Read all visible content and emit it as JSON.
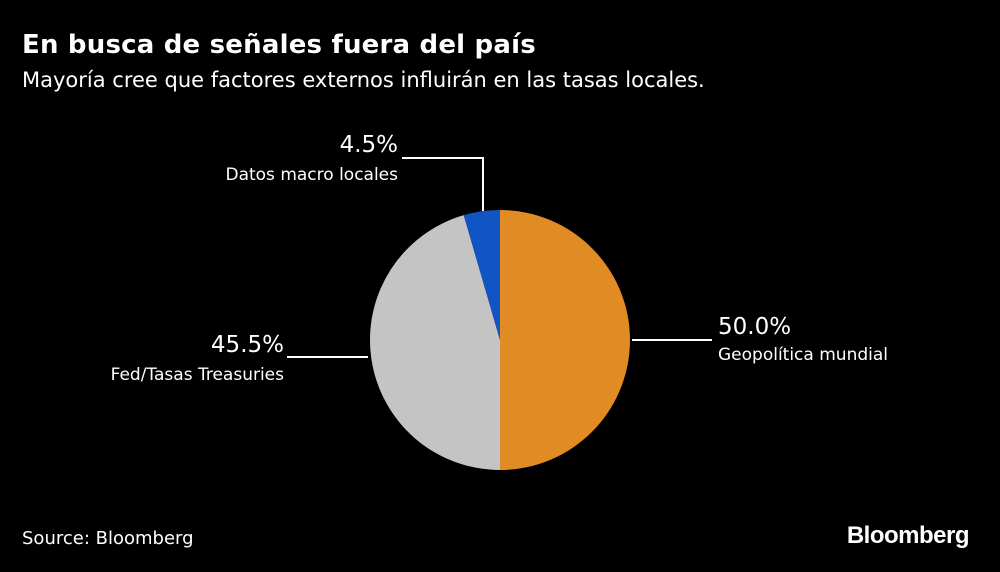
{
  "title": "En busca de señales fuera del país",
  "subtitle": "Mayoría cree que factores externos influirán en las tasas locales.",
  "source": "Source: Bloomberg",
  "logo": "Bloomberg",
  "colors": {
    "background": "#000000",
    "text": "#ffffff",
    "leader_line": "#ffffff"
  },
  "chart_data": {
    "type": "pie",
    "title": "En busca de señales fuera del país",
    "subtitle": "Mayoría cree que factores externos influirán en las tasas locales.",
    "slices": [
      {
        "label": "Geopolítica mundial",
        "value": 50.0,
        "display": "50.0%",
        "color": "#e08b23"
      },
      {
        "label": "Fed/Tasas Treasuries",
        "value": 45.5,
        "display": "45.5%",
        "color": "#c4c4c4"
      },
      {
        "label": "Datos macro locales",
        "value": 4.5,
        "display": "4.5%",
        "color": "#1155c4"
      }
    ],
    "start_angle": "12 o'clock",
    "direction": "clockwise",
    "legend": "none"
  }
}
